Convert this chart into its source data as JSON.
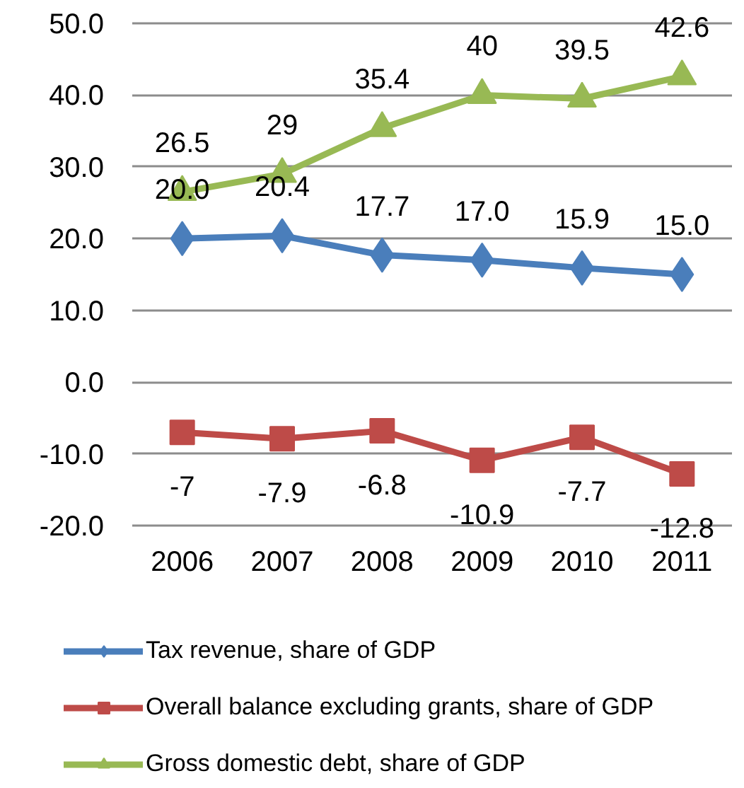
{
  "chart_data": {
    "type": "line",
    "categories": [
      "2006",
      "2007",
      "2008",
      "2009",
      "2010",
      "2011"
    ],
    "series": [
      {
        "name": "Tax revenue, share of GDP",
        "color": "#4a7ebb",
        "marker": "diamond",
        "values": [
          20.0,
          20.4,
          17.7,
          17.0,
          15.9,
          15.0
        ],
        "value_labels": [
          "20.0",
          "20.4",
          "17.7",
          "17.0",
          "15.9",
          "15.0"
        ]
      },
      {
        "name": "Overall balance excluding grants, share of GDP",
        "color": "#be4b48",
        "marker": "square",
        "values": [
          -7,
          -7.9,
          -6.8,
          -10.9,
          -7.7,
          -12.8
        ],
        "value_labels": [
          "-7",
          "-7.9",
          "-6.8",
          "-10.9",
          "-7.7",
          "-12.8"
        ]
      },
      {
        "name": "Gross domestic debt, share of GDP",
        "color": "#98b954",
        "marker": "triangle",
        "values": [
          26.5,
          29,
          35.4,
          40,
          39.5,
          42.6
        ],
        "value_labels": [
          "26.5",
          "29",
          "35.4",
          "40",
          "39.5",
          "42.6"
        ]
      }
    ],
    "ylim": [
      -20,
      50
    ],
    "yticks": [
      {
        "value": -20,
        "label": "-20.0"
      },
      {
        "value": -10,
        "label": "-10.0"
      },
      {
        "value": 0,
        "label": "0.0"
      },
      {
        "value": 10,
        "label": "10.0"
      },
      {
        "value": 20,
        "label": "20.0"
      },
      {
        "value": 30,
        "label": "30.0"
      },
      {
        "value": 40,
        "label": "40.0"
      },
      {
        "value": 50,
        "label": "50.0"
      }
    ],
    "grid": "y",
    "legend": "bottom",
    "line_style": "solid"
  }
}
